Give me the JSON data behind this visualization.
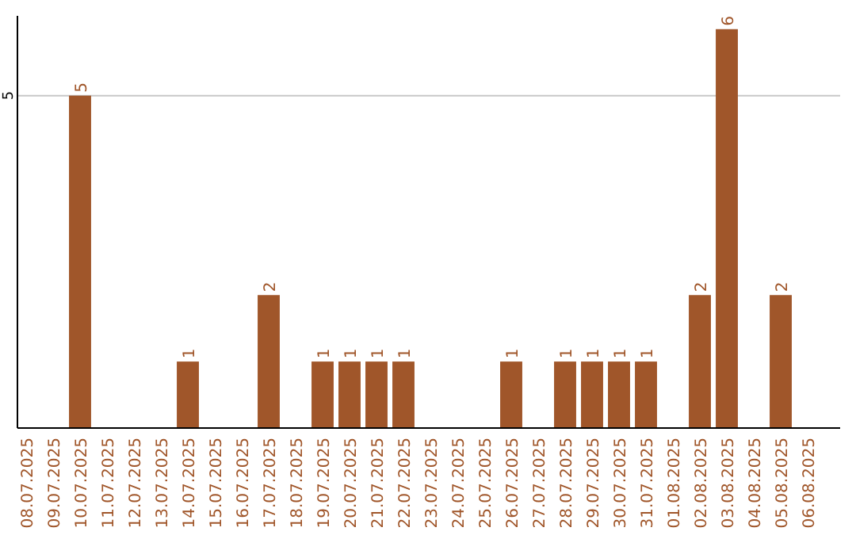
{
  "chart_data": {
    "type": "bar",
    "categories": [
      "08.07.2025",
      "09.07.2025",
      "10.07.2025",
      "11.07.2025",
      "12.07.2025",
      "13.07.2025",
      "14.07.2025",
      "15.07.2025",
      "16.07.2025",
      "17.07.2025",
      "18.07.2025",
      "19.07.2025",
      "20.07.2025",
      "21.07.2025",
      "22.07.2025",
      "23.07.2025",
      "24.07.2025",
      "25.07.2025",
      "26.07.2025",
      "27.07.2025",
      "28.07.2025",
      "29.07.2025",
      "30.07.2025",
      "31.07.2025",
      "01.08.2025",
      "02.08.2025",
      "03.08.2025",
      "04.08.2025",
      "05.08.2025",
      "06.08.2025"
    ],
    "values": [
      null,
      null,
      5,
      null,
      null,
      null,
      1,
      null,
      null,
      2,
      null,
      1,
      1,
      1,
      1,
      null,
      null,
      null,
      1,
      null,
      1,
      1,
      1,
      1,
      null,
      2,
      6,
      null,
      2,
      null
    ],
    "color": "#a0562a",
    "ylim": [
      0,
      6.2
    ],
    "yticks": [
      5
    ],
    "grid": "y",
    "data_labels": true
  }
}
